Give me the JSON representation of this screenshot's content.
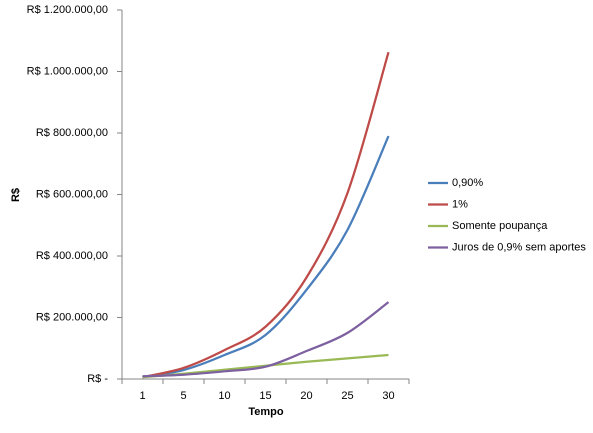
{
  "chart_data": {
    "type": "line",
    "x_label": "Tempo",
    "y_label": "R$",
    "categories": [
      "1",
      "5",
      "10",
      "15",
      "20",
      "25",
      "30"
    ],
    "series": [
      {
        "name": "0,90%",
        "color": "#4a7ebb",
        "values": [
          6000,
          29000,
          78000,
          143000,
          290000,
          485000,
          790000
        ]
      },
      {
        "name": "1%",
        "color": "#be4b48",
        "values": [
          6000,
          36000,
          94000,
          170000,
          330000,
          605000,
          1063000
        ]
      },
      {
        "name": "Somente poupança",
        "color": "#98b954",
        "values": [
          6000,
          17000,
          30000,
          43000,
          56000,
          67000,
          78000
        ]
      },
      {
        "name": "Juros de 0,9% sem aportes",
        "color": "#7d60a0",
        "values": [
          9000,
          14000,
          25000,
          40000,
          91000,
          150000,
          250000
        ]
      }
    ],
    "ylim": [
      0,
      1200000
    ],
    "yticks": [
      {
        "value": 0,
        "label": "R$ -"
      },
      {
        "value": 200000,
        "label": "R$ 200.000,00"
      },
      {
        "value": 400000,
        "label": "R$ 400.000,00"
      },
      {
        "value": 600000,
        "label": "R$ 600.000,00"
      },
      {
        "value": 800000,
        "label": "R$ 800.000,00"
      },
      {
        "value": 1000000,
        "label": "R$ 1.000.000,00"
      },
      {
        "value": 1200000,
        "label": "R$ 1.200.000,00"
      }
    ],
    "grid": false,
    "legend": "right"
  }
}
